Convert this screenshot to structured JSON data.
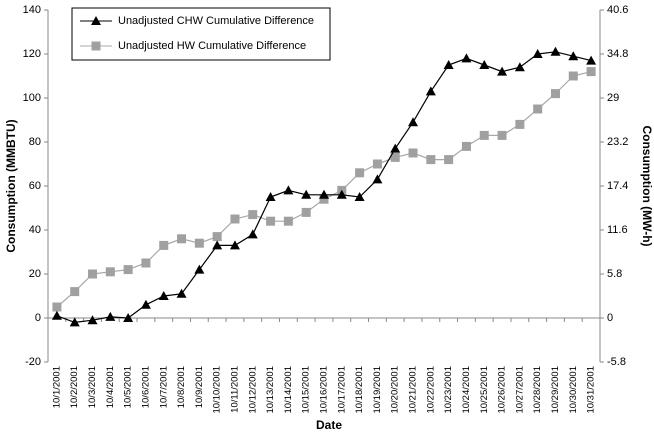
{
  "chart_data": {
    "type": "line",
    "x_label": "Date",
    "y_label": "Consumption (MMBTU)",
    "y2_label": "Consumption (MW-h)",
    "categories": [
      "10/1/2001",
      "10/2/2001",
      "10/3/2001",
      "10/4/2001",
      "10/5/2001",
      "10/6/2001",
      "10/7/2001",
      "10/8/2001",
      "10/9/2001",
      "10/10/2001",
      "10/11/2001",
      "10/12/2001",
      "10/13/2001",
      "10/14/2001",
      "10/15/2001",
      "10/16/2001",
      "10/17/2001",
      "10/18/2001",
      "10/19/2001",
      "10/20/2001",
      "10/21/2001",
      "10/22/2001",
      "10/23/2001",
      "10/24/2001",
      "10/25/2001",
      "10/26/2001",
      "10/27/2001",
      "10/28/2001",
      "10/29/2001",
      "10/30/2001",
      "10/31/2001"
    ],
    "series": [
      {
        "name": "Unadjusted CHW Cumulative Difference",
        "color": "#000000",
        "marker": "triangle",
        "values": [
          1,
          -2,
          -1,
          0.5,
          0,
          6,
          10,
          11,
          22,
          33,
          33,
          38,
          55,
          58,
          56,
          56,
          56,
          55,
          63,
          77,
          89,
          103,
          115,
          118,
          115,
          112,
          114,
          120,
          121,
          119,
          117
        ]
      },
      {
        "name": "Unadjusted HW Cumulative Difference",
        "color": "#a0a0a0",
        "marker": "square",
        "values": [
          5,
          12,
          20,
          21,
          22,
          25,
          33,
          36,
          34,
          37,
          45,
          47,
          44,
          44,
          48,
          54,
          58,
          66,
          70,
          73,
          75,
          72,
          72,
          78,
          83,
          83,
          88,
          95,
          102,
          110,
          112
        ]
      }
    ],
    "ylim": [
      -20,
      140
    ],
    "yticks": [
      -20,
      0,
      20,
      40,
      60,
      80,
      100,
      120,
      140
    ],
    "y2lim": [
      -5.8,
      40.6
    ],
    "y2ticks": [
      -5.8,
      0,
      5.8,
      11.6,
      17.4,
      23.2,
      29,
      34.8,
      40.6
    ],
    "legend": "top-left"
  }
}
